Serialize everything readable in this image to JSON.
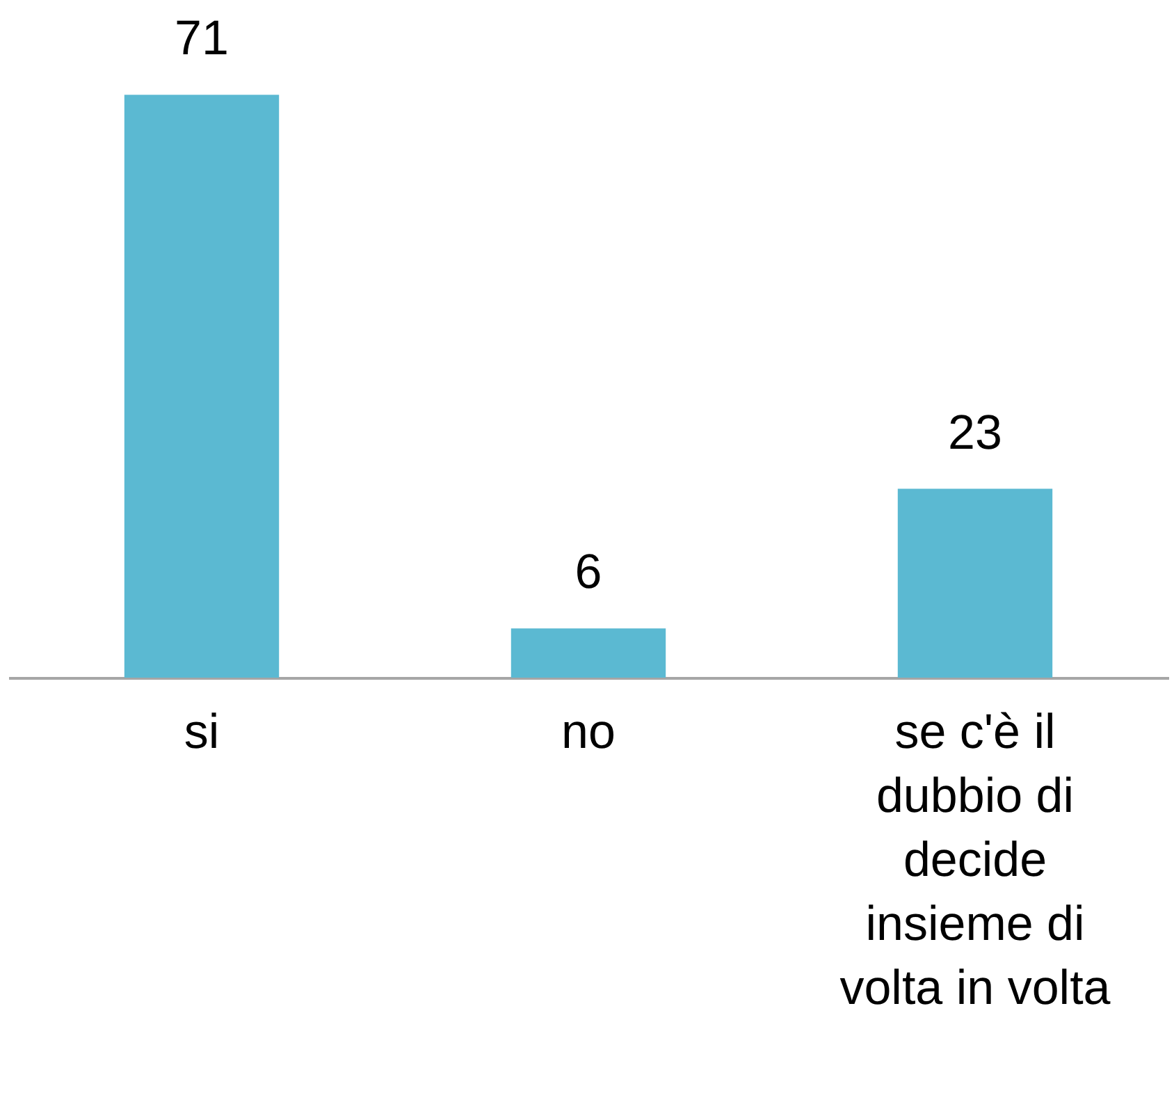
{
  "chart_data": {
    "type": "bar",
    "categories": [
      "si",
      "no",
      "se c'è il dubbio di decide insieme di volta in volta"
    ],
    "values": [
      71,
      6,
      23
    ],
    "color": "#5bb9d2",
    "data_labels": true
  }
}
